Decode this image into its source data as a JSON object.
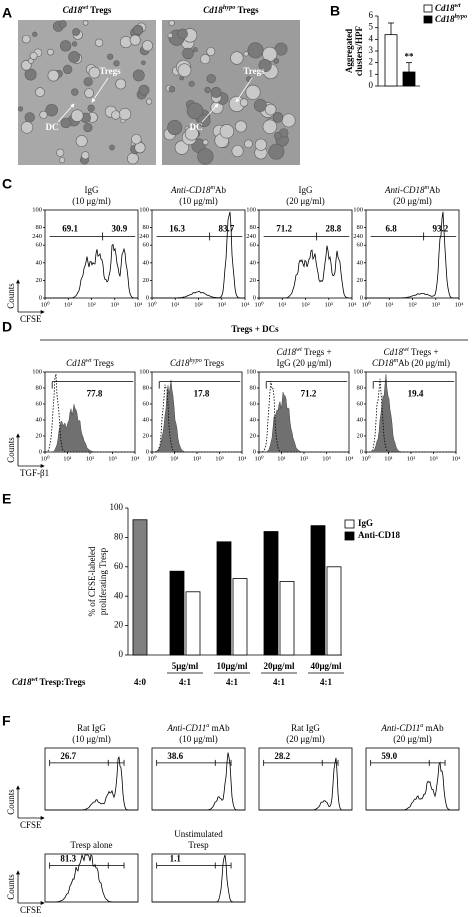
{
  "panel_a": {
    "label": "A",
    "images": [
      {
        "title": "Cd18wt Tregs",
        "arrows": [
          "Tregs",
          "DC"
        ]
      },
      {
        "title": "Cd18hypo Tregs",
        "arrows": [
          "Tregs",
          "DC"
        ]
      }
    ]
  },
  "chart_data": [
    {
      "type": "bar",
      "label": "B",
      "y_label": [
        "Aggregated",
        "clusters/HPF"
      ],
      "categories": [
        null
      ],
      "series": [
        {
          "name": "Cd18wt",
          "color": "#ffffff",
          "values": [
            4.4
          ],
          "errors": [
            1.0
          ]
        },
        {
          "name": "Cd18hypo",
          "color": "#000000",
          "values": [
            1.2
          ],
          "errors": [
            0.8
          ]
        }
      ],
      "ylim": [
        0,
        6
      ],
      "yticks": [
        0,
        1,
        2,
        3,
        4,
        5,
        6
      ],
      "annotation": "**",
      "legend": "upper right"
    },
    {
      "type": "grouped_bar",
      "label": "E",
      "y_label": [
        "% of CFSE-labeled",
        "proliferating Tresp"
      ],
      "categories": [
        "4:0",
        "4:1",
        "4:1",
        "4:1",
        "4:1"
      ],
      "doses": [
        null,
        "5μg/ml",
        "10μg/ml",
        "20μg/ml",
        "40μg/ml"
      ],
      "row_label": "Cd18wt Tresp:Tregs",
      "series": [
        {
          "color": "#808080",
          "values": [
            92,
            null,
            null,
            null,
            null
          ]
        },
        {
          "name": "Anti-CD18",
          "color": "#000000",
          "values": [
            null,
            57,
            77,
            84,
            88
          ]
        },
        {
          "name": "IgG",
          "color": "#ffffff",
          "values": [
            null,
            43,
            52,
            50,
            60
          ]
        }
      ],
      "ylim": [
        0,
        100
      ],
      "yticks": [
        0,
        20,
        40,
        60,
        80,
        100
      ],
      "legend": "upper right"
    }
  ],
  "panel_c": {
    "label": "C",
    "x_label": "CFSE",
    "y_label": "Counts",
    "yticks": [
      0,
      20,
      40,
      60,
      80,
      100
    ],
    "xticks": [
      "10⁰",
      "10¹",
      "10²",
      "10³",
      "10⁴"
    ],
    "plots": [
      {
        "header": [
          "IgG",
          "(10 μg/ml)"
        ],
        "gate_label": "240",
        "gates": [
          "69.1",
          "30.9"
        ]
      },
      {
        "header": [
          "Anti-CD18mAb",
          "(10 μg/ml)"
        ],
        "gate_label": "240",
        "gates": [
          "16.3",
          "83.7"
        ]
      },
      {
        "header": [
          "IgG",
          "(20 μg/ml)"
        ],
        "gate_label": "240",
        "gates": [
          "71.2",
          "28.8"
        ]
      },
      {
        "header": [
          "Anti-CD18mAb",
          "(20 μg/ml)"
        ],
        "gate_label": "240",
        "gates": [
          "6.8",
          "93.2"
        ]
      }
    ]
  },
  "panel_d": {
    "label": "D",
    "title": "Tregs + DCs",
    "x_label": "TGF-β1",
    "y_label": "Counts",
    "yticks": [
      0,
      20,
      40,
      60,
      80,
      100
    ],
    "xticks": [
      "10⁰",
      "10¹",
      "10²",
      "10³",
      "10⁴"
    ],
    "plots": [
      {
        "header": [
          "Cd18wt Tregs"
        ],
        "gates": [
          "77.8"
        ]
      },
      {
        "header": [
          "Cd18hypo Tregs"
        ],
        "gates": [
          "17.8"
        ]
      },
      {
        "header": [
          "Cd18wt Tregs +",
          "IgG (20 μg/ml)"
        ],
        "gates": [
          "71.2"
        ]
      },
      {
        "header": [
          "Cd18wt Tregs +",
          "CD18mAb (20 μg/ml)"
        ],
        "gates": [
          "19.4"
        ]
      }
    ]
  },
  "panel_f": {
    "label": "F",
    "x_label": "CFSE",
    "y_label": "Counts",
    "plots": [
      {
        "header": [
          "Rat IgG",
          "(10 μg/ml)"
        ],
        "gates": [
          "26.7"
        ]
      },
      {
        "header": [
          "Anti-CD11a mAb",
          "(10 μg/ml)"
        ],
        "gates": [
          "38.6"
        ]
      },
      {
        "header": [
          "Rat IgG",
          "(20 μg/ml)"
        ],
        "gates": [
          "28.2"
        ]
      },
      {
        "header": [
          "Anti-CD11a mAb",
          "(20 μg/ml)"
        ],
        "gates": [
          "59.0"
        ]
      }
    ],
    "row2": [
      {
        "header": [
          "Tresp alone"
        ],
        "gates": [
          "81.3"
        ]
      },
      {
        "header": [
          "Unstimulated",
          "Tresp"
        ],
        "gates": [
          "1.1"
        ]
      }
    ]
  }
}
